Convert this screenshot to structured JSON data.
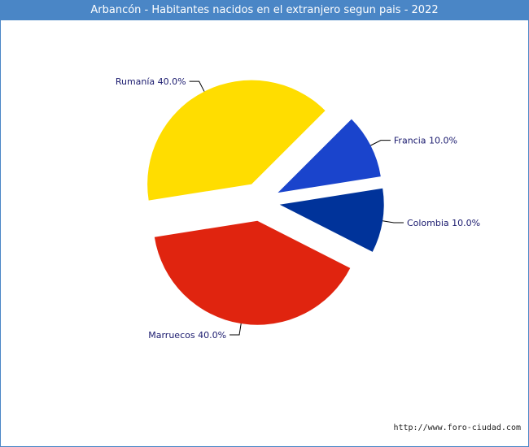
{
  "chart_data": {
    "type": "pie",
    "title": "Arbancón - Habitantes nacidos en el extranjero segun pais - 2022",
    "slices": [
      {
        "name": "Francia",
        "value": 10.0,
        "label": "Francia 10.0%",
        "color": "#1a44cc"
      },
      {
        "name": "Colombia",
        "value": 10.0,
        "label": "Colombia 10.0%",
        "color": "#00339a"
      },
      {
        "name": "Marruecos",
        "value": 40.0,
        "label": "Marruecos 40.0%",
        "color": "#e0240f"
      },
      {
        "name": "Rumanía",
        "value": 40.0,
        "label": "Rumanía 40.0%",
        "color": "#ffdd00"
      }
    ]
  },
  "footer": {
    "credit": "http://www.foro-ciudad.com"
  }
}
